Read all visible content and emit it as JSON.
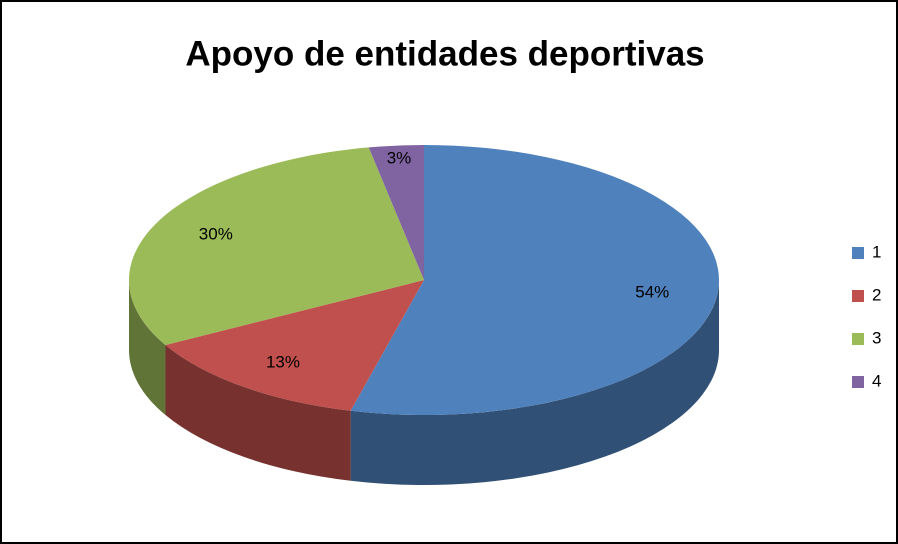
{
  "chart_data": {
    "type": "pie",
    "title": "Apoyo de entidades deportivas",
    "categories": [
      "1",
      "2",
      "3",
      "4"
    ],
    "values": [
      54,
      13,
      30,
      3
    ],
    "value_labels": [
      "54%",
      "13%",
      "30%",
      "3%"
    ],
    "colors": [
      "#4f81bd",
      "#c0504d",
      "#9bbb59",
      "#8064a2"
    ],
    "legend": "right"
  }
}
